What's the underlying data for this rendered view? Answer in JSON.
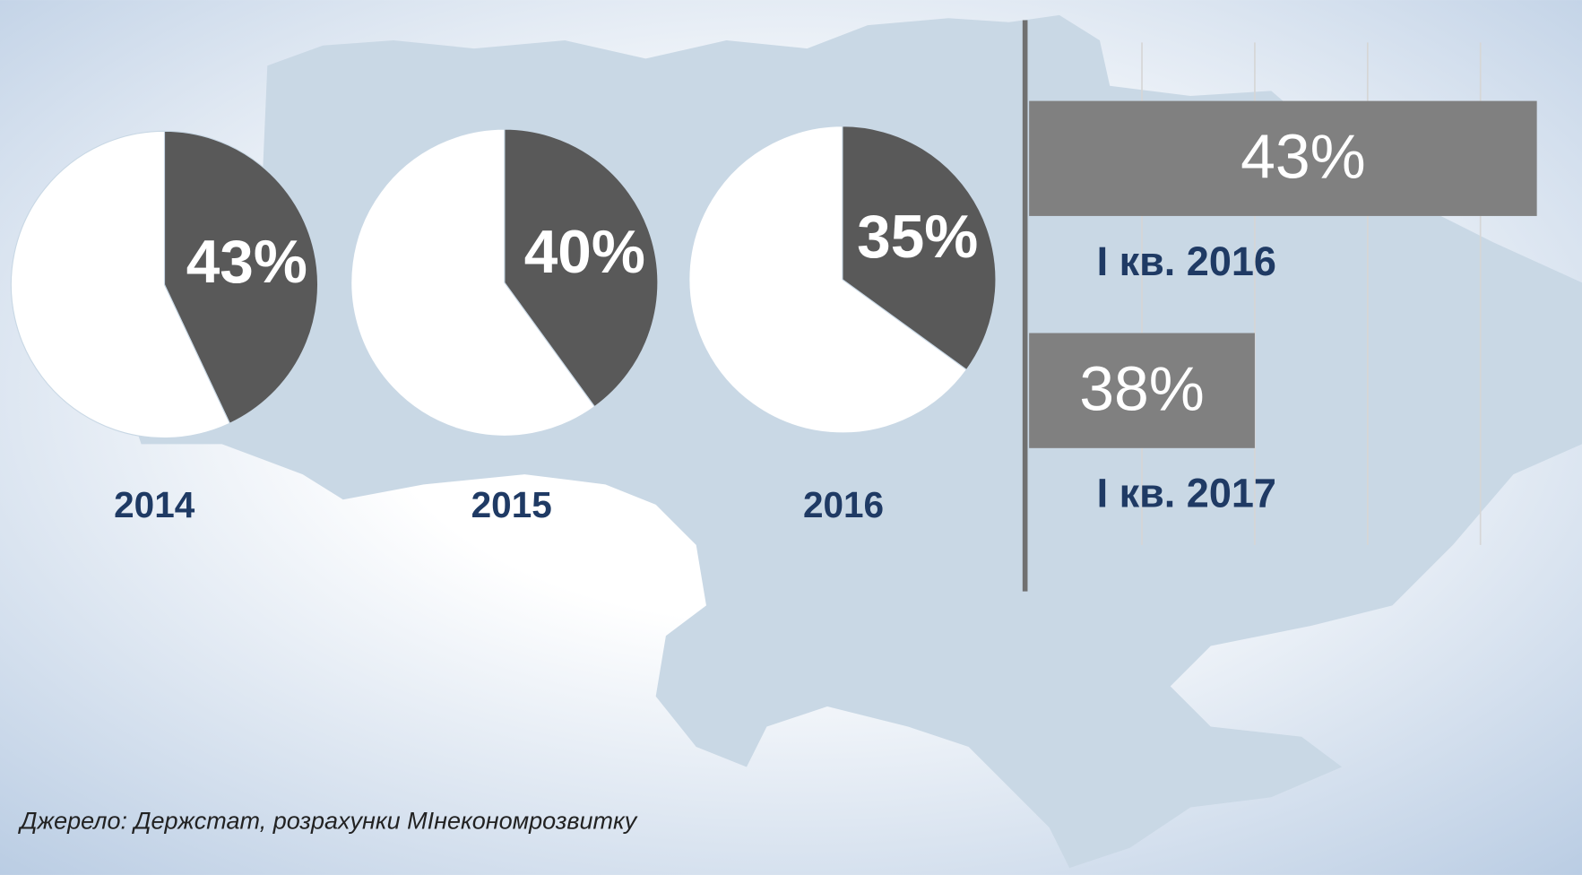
{
  "chart_data": [
    {
      "type": "pie",
      "label": "2014",
      "values": [
        43,
        57
      ],
      "value_labels": [
        "43%",
        null
      ],
      "colors": [
        "#595959",
        "#ffffff"
      ]
    },
    {
      "type": "pie",
      "label": "2015",
      "values": [
        40,
        60
      ],
      "value_labels": [
        "40%",
        null
      ],
      "colors": [
        "#595959",
        "#ffffff"
      ]
    },
    {
      "type": "pie",
      "label": "2016",
      "values": [
        35,
        65
      ],
      "value_labels": [
        "35%",
        null
      ],
      "colors": [
        "#595959",
        "#ffffff"
      ]
    },
    {
      "type": "hbar",
      "categories": [
        "І кв. 2016",
        "І кв. 2017"
      ],
      "values": [
        43,
        38
      ],
      "value_labels": [
        "43%",
        "38%"
      ],
      "color": "#808080",
      "xlim": [
        34,
        43.8
      ],
      "xticks": [
        34,
        36,
        38,
        40,
        42
      ],
      "grid": true
    }
  ],
  "source": "Джерело: Держстат, розрахунки МІнекономрозвитку"
}
